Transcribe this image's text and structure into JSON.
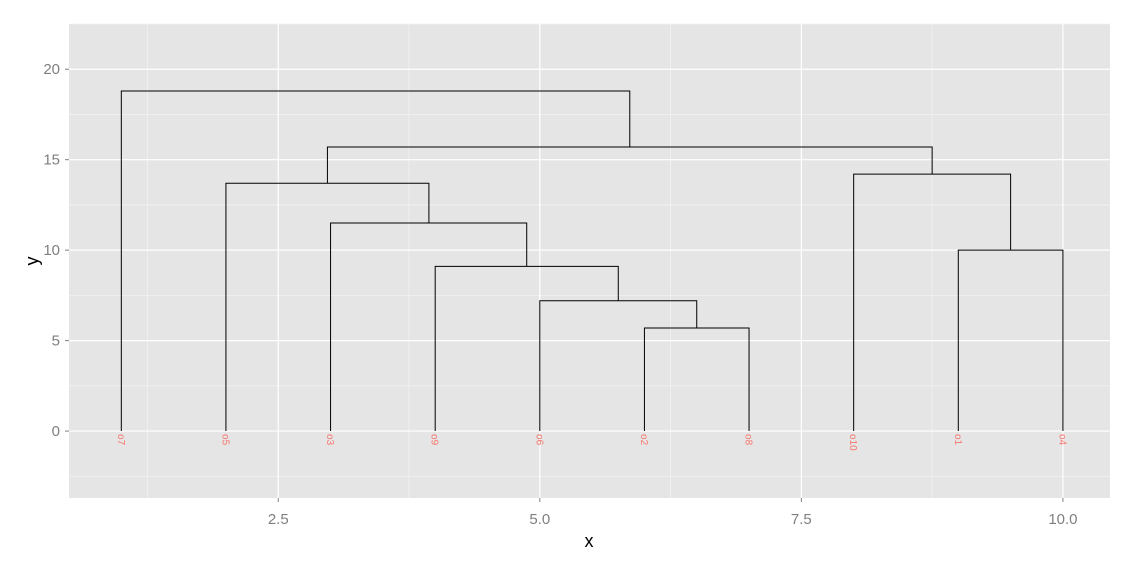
{
  "chart_data": {
    "type": "dendrogram",
    "xlabel": "x",
    "ylabel": "y",
    "xlim": [
      0.5,
      10.45
    ],
    "ylim": [
      -3.7,
      22.5
    ],
    "grid": true,
    "x_ticks": [
      2.5,
      5.0,
      7.5,
      10.0
    ],
    "x_tick_labels": [
      "2.5",
      "5.0",
      "7.5",
      "10.0"
    ],
    "y_ticks": [
      0,
      5,
      10,
      15,
      20
    ],
    "y_tick_labels": [
      "0",
      "5",
      "10",
      "15",
      "20"
    ],
    "leaves": [
      {
        "label": "o7",
        "x": 1
      },
      {
        "label": "o5",
        "x": 2
      },
      {
        "label": "o3",
        "x": 3
      },
      {
        "label": "o9",
        "x": 4
      },
      {
        "label": "o6",
        "x": 5
      },
      {
        "label": "o2",
        "x": 6
      },
      {
        "label": "o8",
        "x": 7
      },
      {
        "label": "o10",
        "x": 8
      },
      {
        "label": "o1",
        "x": 9
      },
      {
        "label": "o4",
        "x": 10
      }
    ],
    "merges": [
      {
        "x1": 6,
        "x2": 7,
        "y1": 0,
        "y2": 0,
        "height": 5.7
      },
      {
        "x1": 5,
        "x2": 6.5,
        "y1": 0,
        "y2": 5.7,
        "height": 7.2
      },
      {
        "x1": 4,
        "x2": 5.75,
        "y1": 0,
        "y2": 7.2,
        "height": 9.1
      },
      {
        "x1": 3,
        "x2": 4.875,
        "y1": 0,
        "y2": 9.1,
        "height": 11.5
      },
      {
        "x1": 2,
        "x2": 3.94,
        "y1": 0,
        "y2": 11.5,
        "height": 13.7
      },
      {
        "x1": 9,
        "x2": 10,
        "y1": 0,
        "y2": 0,
        "height": 10.0
      },
      {
        "x1": 8,
        "x2": 9.5,
        "y1": 0,
        "y2": 10.0,
        "height": 14.2
      },
      {
        "x1": 2.97,
        "x2": 8.75,
        "y1": 13.7,
        "y2": 14.2,
        "height": 15.7
      },
      {
        "x1": 1,
        "x2": 5.86,
        "y1": 0,
        "y2": 15.7,
        "height": 18.8
      }
    ],
    "colors": {
      "panel_background": "#e5e5e5",
      "grid_major": "#ffffff",
      "grid_minor": "#f2f2f2",
      "segment": "#000000",
      "leaf_label": "#f8766d",
      "tick_label": "#7f7f7f"
    }
  }
}
